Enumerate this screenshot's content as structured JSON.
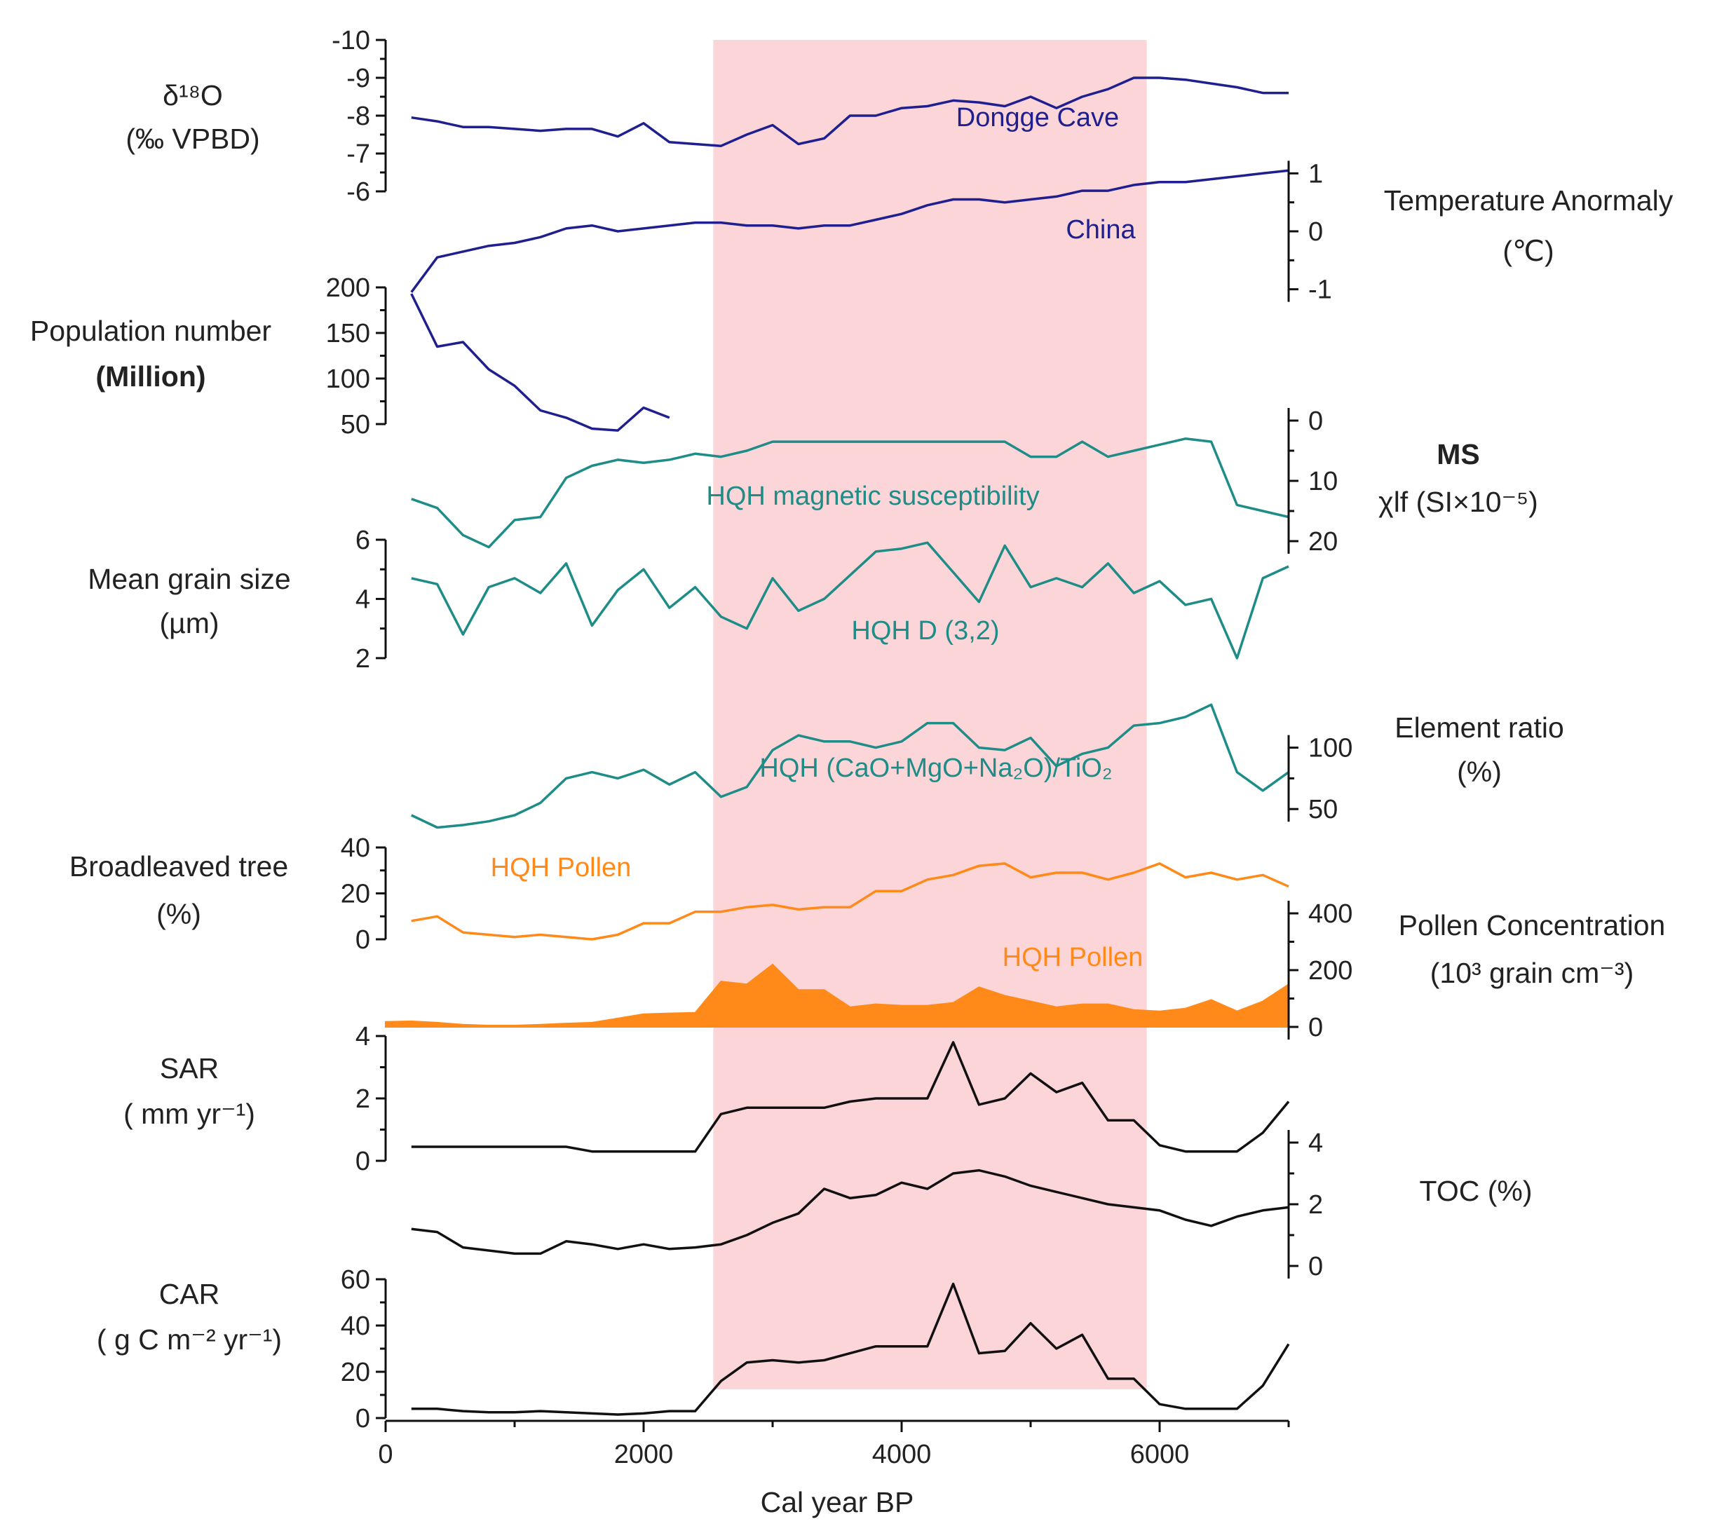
{
  "chart_data": {
    "type": "line",
    "x_axis": {
      "label": "Cal year BP",
      "range": [
        0,
        7000
      ],
      "ticks": [
        0,
        2000,
        4000,
        6000
      ],
      "tick_labels": [
        "0",
        "2000",
        "4000",
        "6000"
      ]
    },
    "highlight": {
      "x_range": [
        2540,
        5900
      ],
      "color": "#fcd5d8"
    },
    "colors": {
      "navy": "#1f1f8f",
      "teal": "#1e8c87",
      "orange": "#ff8a1a",
      "black": "#111111"
    },
    "panels": [
      {
        "id": "d18o",
        "series_label": "Dongge Cave",
        "title_lines": [
          "δ¹⁸O",
          "(‰ VPBD)"
        ],
        "axis_side": "left",
        "range": [
          -10,
          -6
        ],
        "inverted": true,
        "ticks": [
          -10,
          -9,
          -8,
          -7,
          -6
        ],
        "tick_labels": [
          "-10",
          "-9",
          "-8",
          "-7",
          "-6"
        ],
        "color": "navy",
        "x": [
          200,
          400,
          600,
          800,
          1000,
          1200,
          1400,
          1600,
          1800,
          2000,
          2200,
          2400,
          2600,
          2800,
          3000,
          3200,
          3400,
          3600,
          3800,
          4000,
          4200,
          4400,
          4600,
          4800,
          5000,
          5200,
          5400,
          5600,
          5800,
          6000,
          6200,
          6400,
          6600,
          6800,
          7000
        ],
        "y": [
          -7.95,
          -7.85,
          -7.7,
          -7.7,
          -7.65,
          -7.6,
          -7.65,
          -7.65,
          -7.45,
          -7.8,
          -7.3,
          -7.25,
          -7.2,
          -7.5,
          -7.75,
          -7.25,
          -7.4,
          -8.0,
          -8.0,
          -8.2,
          -8.25,
          -8.4,
          -8.35,
          -8.25,
          -8.5,
          -8.2,
          -8.5,
          -8.7,
          -9.0,
          -9.0,
          -8.95,
          -8.85,
          -8.75,
          -8.6,
          -8.6
        ]
      },
      {
        "id": "temp",
        "series_label": "China",
        "title_lines": [
          "Temperature Anormaly",
          "(℃)"
        ],
        "axis_side": "right",
        "range": [
          -1.5,
          1.5
        ],
        "inverted": false,
        "ticks": [
          -1,
          0,
          1
        ],
        "tick_labels": [
          "-1",
          "0",
          "1"
        ],
        "color": "navy",
        "x": [
          200,
          400,
          600,
          800,
          1000,
          1200,
          1400,
          1600,
          1800,
          2000,
          2200,
          2400,
          2600,
          2800,
          3000,
          3200,
          3400,
          3600,
          3800,
          4000,
          4200,
          4400,
          4600,
          4800,
          5000,
          5200,
          5400,
          5600,
          5800,
          6000,
          6200,
          6400,
          6600,
          6800,
          7000
        ],
        "y": [
          -1.05,
          -0.45,
          -0.35,
          -0.25,
          -0.2,
          -0.1,
          0.05,
          0.1,
          0.0,
          0.05,
          0.1,
          0.15,
          0.15,
          0.1,
          0.1,
          0.05,
          0.1,
          0.1,
          0.2,
          0.3,
          0.45,
          0.55,
          0.55,
          0.5,
          0.55,
          0.6,
          0.7,
          0.7,
          0.8,
          0.85,
          0.85,
          0.9,
          0.95,
          1.0,
          1.05
        ]
      },
      {
        "id": "pop",
        "series_label": "",
        "title_lines": [
          "Population number",
          "(Million)"
        ],
        "axis_side": "left",
        "range": [
          50,
          200
        ],
        "inverted": false,
        "ticks": [
          50,
          100,
          150,
          200
        ],
        "tick_labels": [
          "50",
          "100",
          "150",
          "200"
        ],
        "color": "navy",
        "x": [
          200,
          400,
          600,
          800,
          1000,
          1200,
          1400,
          1600,
          1800,
          2000,
          2200
        ],
        "y": [
          193,
          135,
          140,
          110,
          92,
          65,
          57,
          45,
          43,
          68,
          57
        ]
      },
      {
        "id": "ms",
        "series_label": "HQH magnetic susceptibility",
        "title_lines": [
          "MS",
          "χlf (SI×10⁻⁵)"
        ],
        "axis_side": "right",
        "range": [
          0,
          25
        ],
        "inverted": true,
        "ticks": [
          0,
          10,
          20
        ],
        "tick_labels": [
          "0",
          "10",
          "20"
        ],
        "color": "teal",
        "x": [
          200,
          400,
          600,
          800,
          1000,
          1200,
          1400,
          1600,
          1800,
          2000,
          2200,
          2400,
          2600,
          2800,
          3000,
          3200,
          3400,
          3600,
          3800,
          4000,
          4200,
          4400,
          4600,
          4800,
          5000,
          5200,
          5400,
          5600,
          5800,
          6000,
          6200,
          6400,
          6600,
          6800,
          7000
        ],
        "y": [
          13,
          14.5,
          19,
          21,
          16.5,
          16,
          9.5,
          7.5,
          6.5,
          7,
          6.5,
          5.5,
          6,
          5,
          3.5,
          3.5,
          3.5,
          3.5,
          3.5,
          3.5,
          3.5,
          3.5,
          3.5,
          3.5,
          6,
          6,
          3.5,
          6,
          5,
          4,
          3,
          3.5,
          14,
          15,
          16
        ]
      },
      {
        "id": "grain",
        "series_label": "HQH D (3,2)",
        "title_lines": [
          "Mean grain size",
          "(µm)"
        ],
        "axis_side": "left",
        "range": [
          1.5,
          6
        ],
        "inverted": false,
        "ticks": [
          2,
          4,
          6
        ],
        "tick_labels": [
          "2",
          "4",
          "6"
        ],
        "color": "teal",
        "x": [
          200,
          400,
          600,
          800,
          1000,
          1200,
          1400,
          1600,
          1800,
          2000,
          2200,
          2400,
          2600,
          2800,
          3000,
          3200,
          3400,
          3600,
          3800,
          4000,
          4200,
          4400,
          4600,
          4800,
          5000,
          5200,
          5400,
          5600,
          5800,
          6000,
          6200,
          6400,
          6600,
          6800,
          7000
        ],
        "y": [
          4.7,
          4.5,
          2.8,
          4.4,
          4.7,
          4.2,
          5.2,
          3.1,
          4.3,
          5.0,
          3.7,
          4.4,
          3.4,
          3.0,
          4.7,
          3.6,
          4.0,
          4.8,
          5.6,
          5.7,
          5.9,
          4.9,
          3.9,
          5.8,
          4.4,
          4.7,
          4.4,
          5.2,
          4.2,
          4.6,
          3.8,
          4.0,
          2.0,
          4.7,
          5.1
        ]
      },
      {
        "id": "ratio",
        "series_label": "HQH (CaO+MgO+Na₂O)/TiO₂",
        "title_lines": [
          "Element ratio",
          "(%)"
        ],
        "axis_side": "right",
        "range": [
          25,
          150
        ],
        "inverted": false,
        "ticks": [
          50,
          100
        ],
        "tick_labels": [
          "50",
          "100"
        ],
        "color": "teal",
        "x": [
          200,
          400,
          600,
          800,
          1000,
          1200,
          1400,
          1600,
          1800,
          2000,
          2200,
          2400,
          2600,
          2800,
          3000,
          3200,
          3400,
          3600,
          3800,
          4000,
          4200,
          4400,
          4600,
          4800,
          5000,
          5200,
          5400,
          5600,
          5800,
          6000,
          6200,
          6400,
          6600,
          6800,
          7000
        ],
        "y": [
          45,
          35,
          37,
          40,
          45,
          55,
          75,
          80,
          75,
          82,
          70,
          80,
          60,
          68,
          98,
          110,
          105,
          105,
          100,
          105,
          120,
          120,
          100,
          98,
          108,
          85,
          95,
          100,
          118,
          120,
          125,
          135,
          80,
          65,
          80
        ]
      },
      {
        "id": "broadleaf",
        "series_label": "HQH Pollen",
        "title_lines": [
          "Broadleaved tree",
          "(%)"
        ],
        "axis_side": "left",
        "range": [
          0,
          40
        ],
        "inverted": false,
        "ticks": [
          0,
          20,
          40
        ],
        "tick_labels": [
          "0",
          "20",
          "40"
        ],
        "color": "orange",
        "x": [
          200,
          400,
          600,
          800,
          1000,
          1200,
          1400,
          1600,
          1800,
          2000,
          2200,
          2400,
          2600,
          2800,
          3000,
          3200,
          3400,
          3600,
          3800,
          4000,
          4200,
          4400,
          4600,
          4800,
          5000,
          5200,
          5400,
          5600,
          5800,
          6000,
          6200,
          6400,
          6600,
          6800,
          7000
        ],
        "y": [
          8,
          10,
          3,
          2,
          1,
          2,
          1,
          0,
          2,
          7,
          7,
          12,
          12,
          14,
          15,
          13,
          14,
          14,
          21,
          21,
          26,
          28,
          32,
          33,
          27,
          29,
          29,
          26,
          29,
          33,
          27,
          29,
          26,
          28,
          23
        ]
      },
      {
        "id": "concentration",
        "series_label": "HQH Pollen",
        "title_lines": [
          "Pollen Concentration",
          "(10³ grain cm⁻³)"
        ],
        "axis_side": "right",
        "range": [
          0,
          400
        ],
        "inverted": false,
        "ticks": [
          0,
          200,
          400
        ],
        "tick_labels": [
          "0",
          "200",
          "400"
        ],
        "color": "orange",
        "filled": true,
        "x": [
          0,
          200,
          400,
          600,
          800,
          1000,
          1200,
          1400,
          1600,
          1800,
          2000,
          2200,
          2400,
          2600,
          2800,
          3000,
          3200,
          3400,
          3600,
          3800,
          4000,
          4200,
          4400,
          4600,
          4800,
          5000,
          5200,
          5400,
          5600,
          5800,
          6000,
          6200,
          6400,
          6600,
          6800,
          7000
        ],
        "y": [
          18,
          20,
          15,
          8,
          5,
          5,
          8,
          12,
          15,
          30,
          45,
          48,
          50,
          160,
          150,
          220,
          130,
          130,
          70,
          80,
          75,
          75,
          85,
          140,
          110,
          90,
          70,
          80,
          80,
          60,
          55,
          65,
          95,
          55,
          90,
          150
        ]
      },
      {
        "id": "sar",
        "series_label": "",
        "title_lines": [
          "SAR",
          "( mm yr⁻¹)"
        ],
        "axis_side": "left",
        "range": [
          0,
          4
        ],
        "inverted": false,
        "ticks": [
          0,
          2,
          4
        ],
        "tick_labels": [
          "0",
          "2",
          "4"
        ],
        "color": "black",
        "x": [
          200,
          400,
          600,
          800,
          1000,
          1200,
          1400,
          1600,
          1800,
          2000,
          2200,
          2400,
          2600,
          2800,
          3000,
          3200,
          3400,
          3600,
          3800,
          4000,
          4200,
          4400,
          4600,
          4800,
          5000,
          5200,
          5400,
          5600,
          5800,
          6000,
          6200,
          6400,
          6600,
          6800,
          7000
        ],
        "y": [
          0.45,
          0.45,
          0.45,
          0.45,
          0.45,
          0.45,
          0.45,
          0.3,
          0.3,
          0.3,
          0.3,
          0.3,
          1.5,
          1.7,
          1.7,
          1.7,
          1.7,
          1.9,
          2.0,
          2.0,
          2.0,
          3.8,
          1.8,
          2.0,
          2.8,
          2.2,
          2.5,
          1.3,
          1.3,
          0.5,
          0.3,
          0.3,
          0.3,
          0.9,
          1.9
        ]
      },
      {
        "id": "toc",
        "series_label": "",
        "title_lines": [
          "TOC (%)"
        ],
        "axis_side": "right",
        "range": [
          0,
          4
        ],
        "inverted": false,
        "ticks": [
          0,
          2,
          4
        ],
        "tick_labels": [
          "0",
          "2",
          "4"
        ],
        "color": "black",
        "x": [
          200,
          400,
          600,
          800,
          1000,
          1200,
          1400,
          1600,
          1800,
          2000,
          2200,
          2400,
          2600,
          2800,
          3000,
          3200,
          3400,
          3600,
          3800,
          4000,
          4200,
          4400,
          4600,
          4800,
          5000,
          5200,
          5400,
          5600,
          5800,
          6000,
          6200,
          6400,
          6600,
          6800,
          7000
        ],
        "y": [
          1.2,
          1.1,
          0.6,
          0.5,
          0.4,
          0.4,
          0.8,
          0.7,
          0.55,
          0.7,
          0.55,
          0.6,
          0.7,
          1.0,
          1.4,
          1.7,
          2.5,
          2.2,
          2.3,
          2.7,
          2.5,
          3.0,
          3.1,
          2.9,
          2.6,
          2.4,
          2.2,
          2.0,
          1.9,
          1.8,
          1.5,
          1.3,
          1.6,
          1.8,
          1.9
        ]
      },
      {
        "id": "car",
        "series_label": "",
        "title_lines": [
          "CAR",
          "( g C m⁻² yr⁻¹)"
        ],
        "axis_side": "left",
        "range": [
          0,
          60
        ],
        "inverted": false,
        "ticks": [
          0,
          20,
          40,
          60
        ],
        "tick_labels": [
          "0",
          "20",
          "40",
          "60"
        ],
        "color": "black",
        "x": [
          200,
          400,
          600,
          800,
          1000,
          1200,
          1400,
          1600,
          1800,
          2000,
          2200,
          2400,
          2600,
          2800,
          3000,
          3200,
          3400,
          3600,
          3800,
          4000,
          4200,
          4400,
          4600,
          4800,
          5000,
          5200,
          5400,
          5600,
          5800,
          6000,
          6200,
          6400,
          6600,
          6800,
          7000
        ],
        "y": [
          4,
          4,
          3,
          2.5,
          2.5,
          3,
          2.5,
          2,
          1.5,
          2,
          3,
          3,
          16,
          24,
          25,
          24,
          25,
          28,
          31,
          31,
          31,
          58,
          28,
          29,
          41,
          30,
          36,
          17,
          17,
          6,
          4,
          4,
          4,
          14,
          32
        ]
      }
    ]
  }
}
